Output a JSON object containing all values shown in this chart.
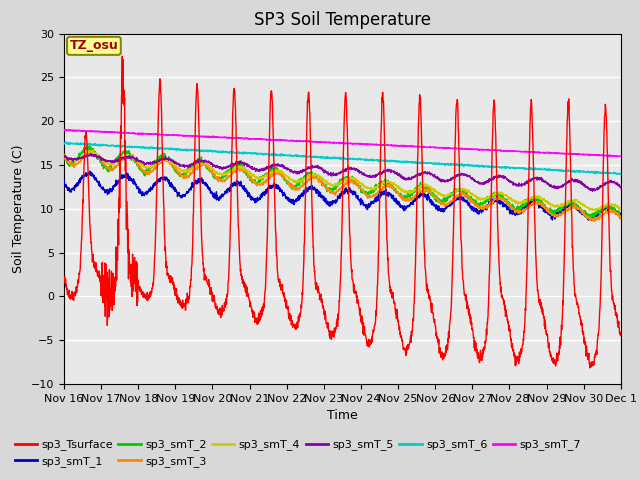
{
  "title": "SP3 Soil Temperature",
  "xlabel": "Time",
  "ylabel": "Soil Temperature (C)",
  "ylim": [
    -10,
    30
  ],
  "background_color": "#d8d8d8",
  "plot_bg_color": "#e8e8e8",
  "grid_color": "white",
  "tz_label": "TZ_osu",
  "tz_box_color": "#ffff99",
  "tz_text_color": "#aa0000",
  "series_colors": {
    "sp3_Tsurface": "#ff0000",
    "sp3_smT_1": "#0000cc",
    "sp3_smT_2": "#00cc00",
    "sp3_smT_3": "#ff8800",
    "sp3_smT_4": "#cccc00",
    "sp3_smT_5": "#8800aa",
    "sp3_smT_6": "#00cccc",
    "sp3_smT_7": "#ff00ff"
  },
  "xtick_labels": [
    "Nov 16",
    "Nov 17",
    "Nov 18",
    "Nov 19",
    "Nov 20",
    "Nov 21",
    "Nov 22",
    "Nov 23",
    "Nov 24",
    "Nov 25",
    "Nov 26",
    "Nov 27",
    "Nov 28",
    "Nov 29",
    "Nov 30",
    "Dec 1"
  ],
  "title_fontsize": 12,
  "axis_label_fontsize": 9,
  "tick_fontsize": 8,
  "legend_fontsize": 8
}
